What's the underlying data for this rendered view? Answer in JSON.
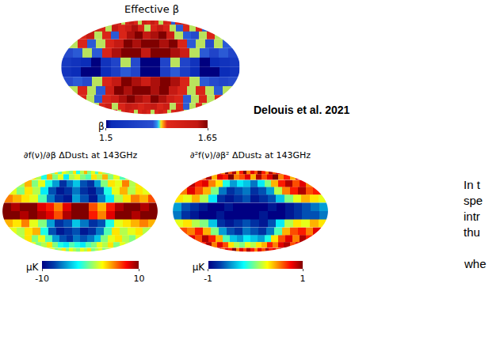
{
  "chart_data": [
    {
      "type": "heatmap",
      "title": "Effective β",
      "colorbar_title": "β",
      "color_range": [
        1.5,
        1.65
      ],
      "color_ticks": [
        1.5,
        1.65
      ],
      "cells": [
        [
          1.6,
          1.62,
          1.58,
          1.6,
          1.63,
          1.6,
          1.58,
          1.62,
          1.6,
          1.63,
          1.6,
          1.58,
          1.61,
          1.6,
          1.57,
          1.6,
          1.62,
          1.6
        ],
        [
          1.62,
          1.6,
          1.58,
          1.63,
          1.6,
          1.62,
          1.64,
          1.6,
          1.58,
          1.6,
          1.63,
          1.6,
          1.58,
          1.57,
          1.6,
          1.58,
          1.6,
          1.57
        ],
        [
          1.6,
          1.63,
          1.58,
          1.6,
          1.57,
          1.6,
          1.64,
          1.65,
          1.63,
          1.64,
          1.65,
          1.62,
          1.58,
          1.57,
          1.56,
          1.58,
          1.6,
          1.58
        ],
        [
          1.58,
          1.6,
          1.57,
          1.58,
          1.6,
          1.63,
          1.65,
          1.64,
          1.65,
          1.65,
          1.64,
          1.65,
          1.6,
          1.57,
          1.58,
          1.56,
          1.58,
          1.57
        ],
        [
          1.56,
          1.57,
          1.58,
          1.57,
          1.6,
          1.64,
          1.65,
          1.65,
          1.63,
          1.65,
          1.65,
          1.64,
          1.62,
          1.58,
          1.57,
          1.55,
          1.57,
          1.55
        ],
        [
          1.53,
          1.52,
          1.51,
          1.5,
          1.52,
          1.55,
          1.58,
          1.56,
          1.5,
          1.5,
          1.55,
          1.58,
          1.55,
          1.52,
          1.5,
          1.51,
          1.52,
          1.53
        ],
        [
          1.52,
          1.51,
          1.5,
          1.5,
          1.51,
          1.54,
          1.57,
          1.55,
          1.5,
          1.5,
          1.54,
          1.57,
          1.54,
          1.51,
          1.5,
          1.5,
          1.51,
          1.52
        ],
        [
          1.56,
          1.57,
          1.56,
          1.58,
          1.6,
          1.63,
          1.65,
          1.64,
          1.62,
          1.64,
          1.65,
          1.64,
          1.6,
          1.58,
          1.57,
          1.56,
          1.55,
          1.56
        ],
        [
          1.58,
          1.6,
          1.58,
          1.57,
          1.62,
          1.65,
          1.64,
          1.65,
          1.65,
          1.64,
          1.65,
          1.63,
          1.6,
          1.58,
          1.6,
          1.58,
          1.57,
          1.58
        ],
        [
          1.6,
          1.58,
          1.57,
          1.6,
          1.62,
          1.64,
          1.65,
          1.64,
          1.63,
          1.65,
          1.64,
          1.62,
          1.6,
          1.57,
          1.58,
          1.6,
          1.58,
          1.6
        ],
        [
          1.58,
          1.6,
          1.62,
          1.58,
          1.6,
          1.63,
          1.62,
          1.6,
          1.62,
          1.63,
          1.6,
          1.62,
          1.58,
          1.6,
          1.57,
          1.58,
          1.6,
          1.58
        ],
        [
          1.6,
          1.58,
          1.6,
          1.62,
          1.6,
          1.58,
          1.6,
          1.62,
          1.6,
          1.58,
          1.6,
          1.62,
          1.6,
          1.58,
          1.6,
          1.62,
          1.6,
          1.58
        ]
      ]
    },
    {
      "type": "heatmap",
      "title": "∂f(ν)/∂β ΔDust₁ at 143GHz",
      "colorbar_title": "μK",
      "color_range": [
        -10,
        10
      ],
      "color_ticks": [
        -10,
        10
      ],
      "cells": [
        [
          2,
          0,
          3,
          -1,
          2,
          1,
          0,
          3,
          -2,
          1,
          4,
          0,
          2,
          -1,
          3,
          1,
          0,
          2
        ],
        [
          3,
          1,
          -2,
          4,
          0,
          2,
          -3,
          1,
          2,
          0,
          -1,
          3,
          1,
          4,
          0,
          2,
          -1,
          1
        ],
        [
          1,
          4,
          0,
          2,
          -2,
          -5,
          -8,
          -6,
          -4,
          -7,
          -8,
          -5,
          0,
          3,
          2,
          5,
          1,
          3
        ],
        [
          2,
          0,
          3,
          1,
          -3,
          -7,
          -9,
          -8,
          -6,
          -8,
          -9,
          -7,
          -2,
          2,
          4,
          1,
          3,
          2
        ],
        [
          5,
          4,
          3,
          2,
          -1,
          -6,
          -8,
          -9,
          -5,
          -7,
          -9,
          -6,
          -3,
          1,
          3,
          5,
          4,
          6
        ],
        [
          10,
          9,
          10,
          10,
          8,
          7,
          5,
          8,
          10,
          10,
          6,
          4,
          7,
          9,
          10,
          10,
          9,
          10
        ],
        [
          10,
          10,
          9,
          10,
          9,
          8,
          6,
          9,
          10,
          10,
          7,
          5,
          8,
          10,
          10,
          9,
          10,
          10
        ],
        [
          4,
          3,
          5,
          2,
          0,
          -5,
          -8,
          -7,
          -4,
          -6,
          -8,
          -7,
          -2,
          2,
          3,
          4,
          5,
          4
        ],
        [
          2,
          1,
          3,
          4,
          -2,
          -7,
          -9,
          -8,
          -7,
          -9,
          -8,
          -6,
          -1,
          3,
          1,
          2,
          3,
          1
        ],
        [
          1,
          3,
          0,
          2,
          -1,
          -5,
          -7,
          -8,
          -6,
          -7,
          -6,
          -4,
          0,
          2,
          3,
          1,
          0,
          2
        ],
        [
          2,
          0,
          1,
          3,
          0,
          -2,
          -3,
          -1,
          -2,
          -3,
          -1,
          0,
          2,
          1,
          3,
          0,
          2,
          1
        ],
        [
          1,
          2,
          0,
          1,
          3,
          0,
          2,
          1,
          0,
          2,
          1,
          3,
          0,
          1,
          2,
          0,
          1,
          2
        ]
      ]
    },
    {
      "type": "heatmap",
      "title": "∂²f(ν)/∂β² ΔDust₂ at 143GHz",
      "colorbar_title": "μK",
      "color_range": [
        -1,
        1
      ],
      "color_ticks": [
        -1,
        1
      ],
      "cells": [
        [
          0.8,
          0.5,
          1,
          0.6,
          0.9,
          0.4,
          0.7,
          1,
          0.5,
          0.8,
          0.6,
          1,
          0.7,
          0.5,
          0.9,
          0.6,
          0.8,
          0.7
        ],
        [
          0.6,
          0.9,
          0.4,
          0.8,
          0.7,
          1,
          0.5,
          0.6,
          0.8,
          0.4,
          0.9,
          0.6,
          0.8,
          1,
          0.5,
          0.7,
          0.4,
          0.8
        ],
        [
          0.9,
          0.7,
          0.8,
          0.5,
          0.3,
          -0.2,
          -0.5,
          -0.3,
          -0.4,
          -0.6,
          -0.3,
          0,
          0.4,
          0.7,
          0.9,
          0.6,
          0.8,
          0.5
        ],
        [
          0.5,
          0.8,
          0.6,
          0.4,
          0,
          -0.6,
          -0.8,
          -0.7,
          -0.6,
          -0.8,
          -0.7,
          -0.5,
          0.1,
          0.5,
          0.7,
          0.9,
          0.6,
          0.7
        ],
        [
          0.3,
          0.2,
          0.4,
          0.1,
          -0.3,
          -0.8,
          -0.9,
          -0.8,
          -0.7,
          -0.9,
          -0.8,
          -0.7,
          -0.4,
          0,
          0.2,
          0.4,
          0.3,
          0.2
        ],
        [
          -0.5,
          -0.7,
          -0.8,
          -0.9,
          -1,
          -1,
          -0.9,
          -1,
          -1,
          -1,
          -1,
          -0.9,
          -1,
          -0.9,
          -0.8,
          -0.7,
          -0.6,
          -0.5
        ],
        [
          -0.6,
          -0.8,
          -0.9,
          -1,
          -1,
          -0.9,
          -1,
          -1,
          -1,
          -1,
          -0.9,
          -1,
          -1,
          -0.9,
          -0.8,
          -0.7,
          -0.7,
          -0.6
        ],
        [
          0.2,
          0.3,
          0.1,
          0,
          -0.4,
          -0.8,
          -0.9,
          -0.8,
          -0.7,
          -0.8,
          -0.9,
          -0.7,
          -0.3,
          0.1,
          0.3,
          0.2,
          0.4,
          0.3
        ],
        [
          0.6,
          0.5,
          0.7,
          0.4,
          0,
          -0.5,
          -0.7,
          -0.8,
          -0.6,
          -0.7,
          -0.8,
          -0.6,
          -0.1,
          0.4,
          0.6,
          0.7,
          0.5,
          0.8
        ],
        [
          0.8,
          0.6,
          0.9,
          0.7,
          0.4,
          -0.1,
          -0.4,
          -0.5,
          -0.3,
          -0.4,
          -0.5,
          -0.2,
          0.3,
          0.6,
          0.8,
          0.5,
          0.9,
          0.7
        ],
        [
          0.7,
          0.9,
          0.5,
          0.8,
          0.6,
          0.3,
          0.1,
          0,
          0.2,
          0.1,
          0.3,
          0.4,
          0.7,
          0.5,
          0.8,
          0.9,
          0.6,
          0.8
        ],
        [
          0.9,
          0.6,
          0.8,
          0.7,
          1,
          0.5,
          0.8,
          0.6,
          0.9,
          0.7,
          0.5,
          0.8,
          0.6,
          0.9,
          0.7,
          0.8,
          0.6,
          0.9
        ]
      ]
    }
  ],
  "citation": "Delouis et al. 2021",
  "side_text": [
    "In t",
    "spe",
    "intr",
    "thu",
    "whe"
  ]
}
